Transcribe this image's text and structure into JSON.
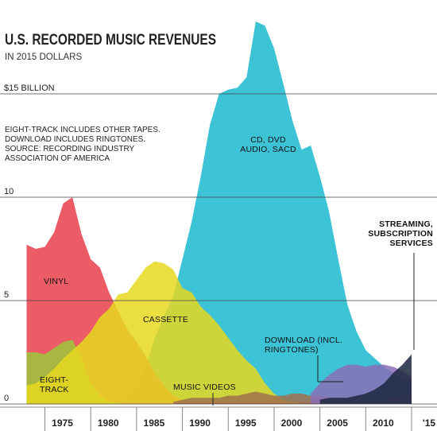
{
  "chart_data": {
    "type": "area",
    "title": "U.S. RECORDED MUSIC REVENUES",
    "subtitle": "IN 2015 DOLLARS",
    "notes": [
      "EIGHT-TRACK INCLUDES OTHER TAPES.",
      "DOWNLOAD INCLUDES RINGTONES.",
      "SOURCE: RECORDING INDUSTRY",
      "ASSOCIATION OF AMERICA"
    ],
    "x": [
      1973,
      1974,
      1975,
      1976,
      1977,
      1978,
      1979,
      1980,
      1981,
      1982,
      1983,
      1984,
      1985,
      1986,
      1987,
      1988,
      1989,
      1990,
      1991,
      1992,
      1993,
      1994,
      1995,
      1996,
      1997,
      1998,
      1999,
      2000,
      2001,
      2002,
      2003,
      2004,
      2005,
      2006,
      2007,
      2008,
      2009,
      2010,
      2011,
      2012,
      2013,
      2014,
      2015
    ],
    "xlim": [
      1972.7,
      2017.6
    ],
    "xticks": [
      1975,
      1980,
      1985,
      1990,
      1995,
      2000,
      2005,
      2010,
      {
        "value": 2015,
        "label": "'15"
      }
    ],
    "ylim": [
      0,
      19.5
    ],
    "yticks": [
      0,
      5,
      10,
      {
        "value": 15,
        "label": "$15 BILLION"
      }
    ],
    "grid": true,
    "series": [
      {
        "name": "CD, DVD AUDIO, SACD",
        "color": "#3cc3d6",
        "values": [
          null,
          null,
          null,
          null,
          null,
          null,
          null,
          null,
          null,
          null,
          0.1,
          0.3,
          0.8,
          1.8,
          3.2,
          4.3,
          5.2,
          7.0,
          8.8,
          11.0,
          13.5,
          15.0,
          15.2,
          15.3,
          15.8,
          18.5,
          18.3,
          17.2,
          15.5,
          13.7,
          12.3,
          12.5,
          11.0,
          9.3,
          7.0,
          4.8,
          3.5,
          2.6,
          2.2,
          1.8,
          1.5,
          1.2,
          1.1
        ]
      },
      {
        "name": "VINYL",
        "color": "#e8404c",
        "values": [
          7.7,
          7.5,
          7.6,
          8.3,
          9.7,
          10.0,
          8.2,
          7.0,
          6.6,
          5.4,
          4.5,
          3.6,
          3.0,
          2.3,
          1.5,
          0.9,
          0.4,
          0.2,
          0.1,
          0.1,
          0.1,
          0.1,
          0.1,
          0.1,
          0.1,
          0.1,
          0.1,
          0.1,
          0.1,
          0.1,
          0.1,
          0.1,
          0.1,
          0.1,
          0.1,
          0.1,
          0.1,
          0.1,
          0.2,
          0.2,
          0.3,
          0.4,
          0.4
        ]
      },
      {
        "name": "EIGHT-TRACK",
        "color": "#9cc63c",
        "values": [
          2.5,
          2.5,
          2.4,
          2.7,
          3.0,
          3.1,
          2.2,
          1.0,
          0.4,
          0.1,
          0.05,
          null,
          null,
          null,
          null,
          null,
          null,
          null,
          null,
          null,
          null,
          null,
          null,
          null,
          null,
          null,
          null,
          null,
          null,
          null,
          null,
          null,
          null,
          null,
          null,
          null,
          null,
          null,
          null,
          null,
          null,
          null,
          null
        ]
      },
      {
        "name": "CASSETTE",
        "color": "#e6d820",
        "values": [
          0.9,
          1.0,
          1.3,
          1.7,
          2.2,
          2.6,
          3.0,
          3.5,
          4.2,
          4.6,
          5.3,
          5.4,
          6.0,
          6.6,
          6.9,
          6.8,
          6.5,
          5.6,
          5.4,
          4.7,
          4.3,
          3.8,
          3.2,
          2.6,
          2.1,
          1.7,
          1.0,
          0.5,
          0.2,
          0.1,
          0.05,
          null,
          null,
          null,
          null,
          null,
          null,
          null,
          null,
          null,
          null,
          null,
          null
        ]
      },
      {
        "name": "MUSIC VIDEOS",
        "color": "#a0704c",
        "values": [
          null,
          null,
          null,
          null,
          null,
          null,
          null,
          null,
          null,
          null,
          null,
          null,
          null,
          null,
          null,
          null,
          0.1,
          0.2,
          0.3,
          0.3,
          0.3,
          0.3,
          0.4,
          0.4,
          0.5,
          0.6,
          0.5,
          0.4,
          0.4,
          0.5,
          0.5,
          0.4,
          0.4,
          0.3,
          0.3,
          0.2,
          0.2,
          0.2,
          0.2,
          0.2,
          0.2,
          0.2,
          0.2
        ]
      },
      {
        "name": "DOWNLOAD (INCL. RINGTONES)",
        "color": "#8a6fb8",
        "values": [
          null,
          null,
          null,
          null,
          null,
          null,
          null,
          null,
          null,
          null,
          null,
          null,
          null,
          null,
          null,
          null,
          null,
          null,
          null,
          null,
          null,
          null,
          null,
          null,
          null,
          null,
          null,
          null,
          null,
          null,
          null,
          0.5,
          1.0,
          1.4,
          1.7,
          1.9,
          1.9,
          1.8,
          1.9,
          1.9,
          1.8,
          1.6,
          1.3
        ]
      },
      {
        "name": "STREAMING, SUBSCRIPTION SERVICES",
        "color": "#1c2740",
        "values": [
          null,
          null,
          null,
          null,
          null,
          null,
          null,
          null,
          null,
          null,
          null,
          null,
          null,
          null,
          null,
          null,
          null,
          null,
          null,
          null,
          null,
          null,
          null,
          null,
          null,
          null,
          null,
          null,
          null,
          null,
          null,
          null,
          0.2,
          0.3,
          0.3,
          0.3,
          0.4,
          0.5,
          0.7,
          1.0,
          1.5,
          1.9,
          2.4
        ]
      }
    ]
  }
}
